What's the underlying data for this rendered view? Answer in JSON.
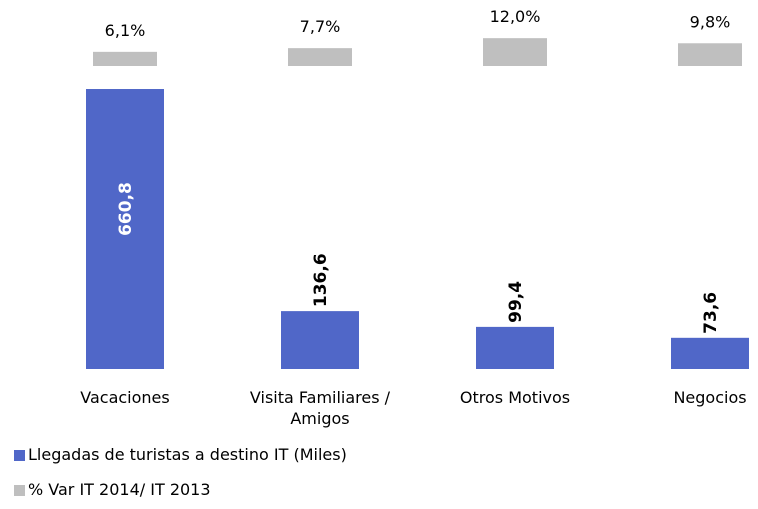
{
  "chart_data": {
    "type": "bar",
    "categories": [
      "Vacaciones",
      "Visita Familiares / Amigos",
      "Otros Motivos",
      "Negocios"
    ],
    "series": [
      {
        "name": "Llegadas de turistas a destino IT (Miles)",
        "color": "#5067c8",
        "values": [
          660.8,
          136.6,
          99.4,
          73.6
        ],
        "value_labels": [
          "660,8",
          "136,6",
          "99,4",
          "73,6"
        ]
      },
      {
        "name": "% Var IT 2014/ IT 2013",
        "color": "#bfbfbf",
        "axis": "y2",
        "values": [
          6.1,
          7.7,
          12.0,
          9.8
        ],
        "value_labels": [
          "6,1%",
          "7,7%",
          "12,0%",
          "9,8%"
        ]
      }
    ],
    "ylim": [
      0,
      700
    ],
    "y2lim": [
      0,
      25
    ],
    "legend": "bottom-left"
  }
}
